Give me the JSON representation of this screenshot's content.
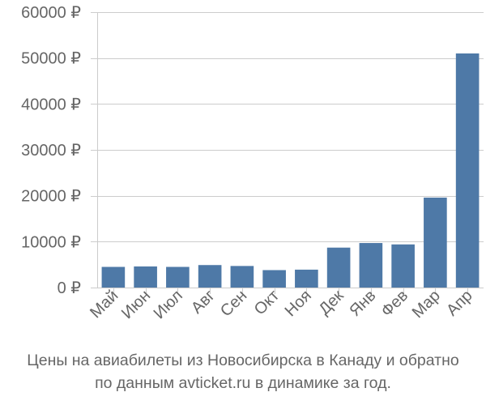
{
  "chart_data": {
    "type": "bar",
    "categories": [
      "Май",
      "Июн",
      "Июл",
      "Авг",
      "Сен",
      "Окт",
      "Ноя",
      "Дек",
      "Янв",
      "Фев",
      "Мар",
      "Апр"
    ],
    "values": [
      4500,
      4600,
      4500,
      4900,
      4700,
      3800,
      3900,
      8700,
      9700,
      9400,
      19600,
      51000
    ],
    "y_ticks": [
      0,
      10000,
      20000,
      30000,
      40000,
      50000,
      60000
    ],
    "y_tick_suffix": " ₽",
    "ylim": [
      0,
      60000
    ],
    "bar_color": "#4e79a7",
    "axis_color": "#cccccc",
    "grid": true,
    "caption_line1": "Цены на авиабилеты из Новосибирска в Канаду и обратно",
    "caption_line2": "по данным avticket.ru в динамике за год."
  }
}
